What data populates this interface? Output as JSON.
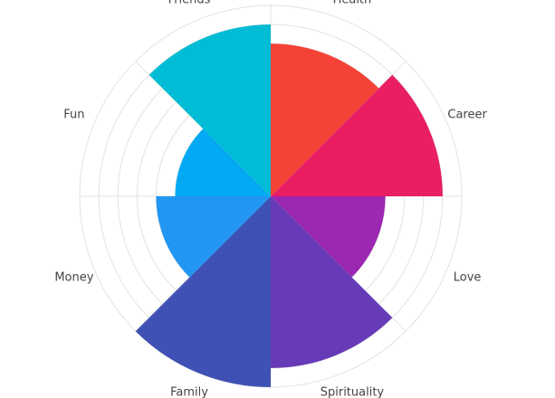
{
  "chart_data": {
    "type": "polar-area",
    "categories": [
      "Health",
      "Career",
      "Love",
      "Spirituality",
      "Family",
      "Money",
      "Fun",
      "Friends"
    ],
    "values": [
      8,
      9,
      6,
      9,
      10,
      6,
      5,
      9
    ],
    "colors": [
      "#f44336",
      "#e91e63",
      "#9c27b0",
      "#673ab7",
      "#3f51b5",
      "#2196f3",
      "#03a9f4",
      "#00bcd4"
    ],
    "rlim": [
      0,
      10
    ],
    "rticks": [
      1,
      2,
      3,
      4,
      5,
      6,
      7,
      8,
      9,
      10
    ],
    "grid": true
  }
}
